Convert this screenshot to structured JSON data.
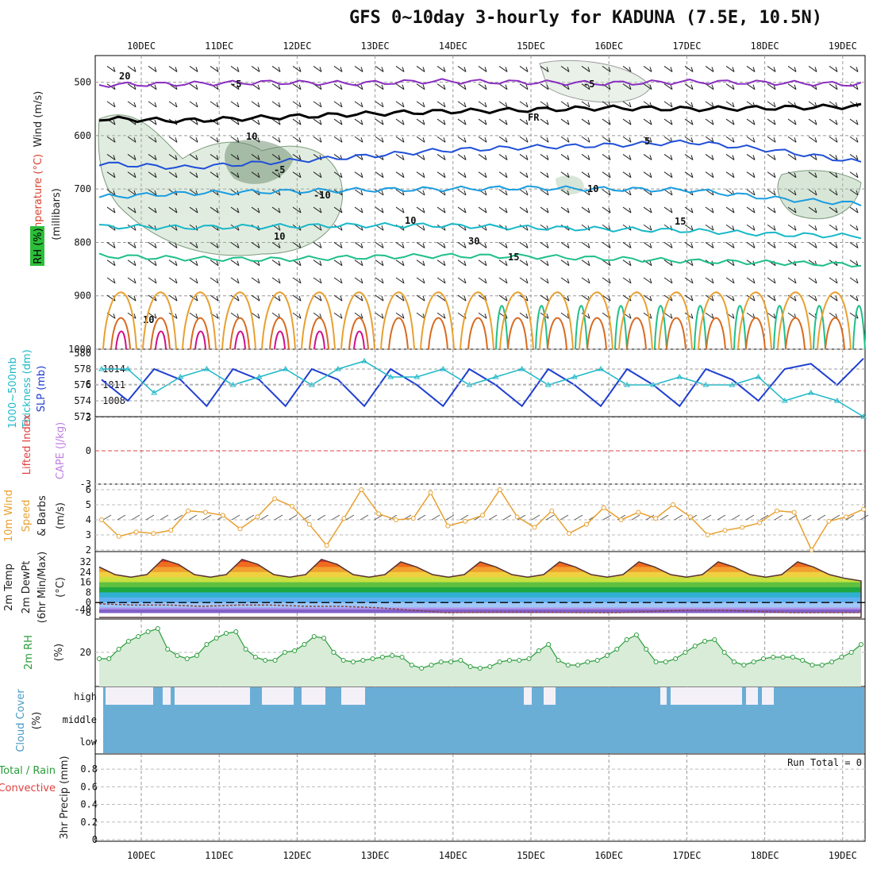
{
  "title": "GFS 0~10day 3-hourly for KADUNA (7.5E, 10.5N)",
  "dates": [
    "10DEC",
    "11DEC",
    "12DEC",
    "13DEC",
    "14DEC",
    "15DEC",
    "16DEC",
    "17DEC",
    "18DEC",
    "19DEC"
  ],
  "run_total": "Run Total = 0",
  "colors": {
    "purple": "#8a2fc0",
    "black": "#000000",
    "blue": "#1f4fd8",
    "lightblue": "#1a9de0",
    "teal": "#17b8c8",
    "green": "#1fbf8a",
    "orange": "#e8a030",
    "darkorange": "#d86a20",
    "magenta": "#d0108a",
    "slp": "#1f3fd0",
    "thick": "#20b8c8",
    "wind10": "#e8a030",
    "rh": "#2a9d3a",
    "cloud": "#6aaed6"
  },
  "panel_labels": {
    "upper": [
      "Wind (m/s)",
      "Temperature (°C)",
      "RH (%)",
      "(millibars)"
    ],
    "thickness": [
      "1000~500mb",
      "Thickness (dm)",
      "SLP (mb)"
    ],
    "stability": [
      "Lifted Index",
      "CAPE (J/kg)"
    ],
    "wind10": [
      "10m Wind",
      "Speed",
      "& Barbs",
      "(m/s)"
    ],
    "temp": [
      "2m Temp",
      "2m DewPt",
      "(6hr Min/Max)",
      "(°C)"
    ],
    "rh": [
      "2m RH",
      "(%)"
    ],
    "cloud": [
      "Cloud Cover",
      "(%)"
    ],
    "precip": [
      "Total / Rain",
      "Convective",
      "3hr Precip (mm)"
    ]
  },
  "contour_labels": [
    "-5",
    "-5",
    "FR",
    "-5",
    "5",
    "-10",
    "10",
    "10",
    "15",
    "15",
    "20",
    "10",
    "10",
    "30",
    "10"
  ],
  "cloud_levels": [
    "high",
    "middle",
    "low"
  ],
  "chart_data": [
    {
      "type": "line",
      "title": "Upper air cross-section",
      "ylabel": "(millibars)",
      "y_ticks": [
        "500",
        "600",
        "700",
        "800",
        "900",
        "1000"
      ],
      "x": [
        "10DEC",
        "11DEC",
        "12DEC",
        "13DEC",
        "14DEC",
        "15DEC",
        "16DEC",
        "17DEC",
        "18DEC",
        "19DEC"
      ],
      "series": [
        {
          "name": "-5",
          "values": [
            505,
            503,
            500,
            502,
            498,
            500,
            502,
            499,
            501,
            504
          ]
        },
        {
          "name": "FR",
          "values": [
            568,
            572,
            566,
            560,
            555,
            552,
            548,
            550,
            548,
            545
          ]
        },
        {
          "name": "5",
          "values": [
            652,
            660,
            650,
            640,
            628,
            622,
            618,
            612,
            628,
            650
          ]
        },
        {
          "name": "10",
          "values": [
            715,
            708,
            705,
            702,
            700,
            698,
            700,
            702,
            718,
            728
          ]
        },
        {
          "name": "15",
          "values": [
            770,
            772,
            770,
            768,
            768,
            772,
            775,
            778,
            785,
            788
          ]
        },
        {
          "name": "20",
          "values": [
            825,
            830,
            832,
            828,
            825,
            826,
            830,
            835,
            838,
            842
          ]
        }
      ]
    },
    {
      "type": "line",
      "y_ticks_left": [
        "572",
        "574",
        "576",
        "578",
        "580"
      ],
      "y_ticks_right": [
        "1008",
        "1011",
        "1014"
      ],
      "series": [
        {
          "name": "SLP (mb)",
          "values": [
            1012,
            1008,
            1014,
            1012,
            1007,
            1014,
            1012,
            1007,
            1014,
            1012,
            1007,
            1014,
            1011,
            1007,
            1014,
            1011,
            1007,
            1014,
            1011,
            1007,
            1014,
            1011,
            1007,
            1014,
            1012,
            1008,
            1014,
            1015,
            1011,
            1016
          ]
        },
        {
          "name": "Thickness (dm)",
          "values": [
            578,
            578,
            575,
            577,
            578,
            576,
            577,
            578,
            576,
            578,
            579,
            577,
            577,
            578,
            576,
            577,
            578,
            576,
            577,
            578,
            576,
            576,
            577,
            576,
            576,
            577,
            574,
            575,
            574,
            572
          ]
        }
      ]
    },
    {
      "type": "line",
      "y_ticks": [
        "-3",
        "0",
        "3",
        "6"
      ]
    },
    {
      "type": "line",
      "y_ticks": [
        "2",
        "3",
        "4",
        "5",
        "6"
      ],
      "series": [
        {
          "name": "10m Wind Speed",
          "values": [
            4.0,
            2.9,
            3.2,
            3.1,
            3.3,
            4.6,
            4.5,
            4.3,
            3.4,
            4.2,
            5.4,
            4.9,
            3.7,
            2.3,
            4.1,
            6.0,
            4.4,
            4.0,
            4.1,
            5.8,
            3.6,
            3.9,
            4.3,
            6.0,
            4.2,
            3.5,
            4.6,
            3.1,
            3.7,
            4.8,
            4.0,
            4.5,
            4.1,
            5.0,
            4.2,
            3.0,
            3.3,
            3.5,
            3.8,
            4.6,
            4.5,
            2.0,
            3.9,
            4.2,
            4.7
          ]
        }
      ]
    },
    {
      "type": "area",
      "y_ticks": [
        "-40",
        "-8",
        "0",
        "8",
        "16",
        "24",
        "32"
      ],
      "series": [
        {
          "name": "2m Temp",
          "values": [
            28,
            22,
            20,
            22,
            34,
            30,
            22,
            20,
            22,
            34,
            30,
            22,
            20,
            22,
            34,
            30,
            22,
            20,
            22,
            32,
            28,
            22,
            20,
            22,
            32,
            28,
            22,
            20,
            22,
            32,
            28,
            22,
            20,
            22,
            32,
            28,
            22,
            20,
            22,
            32,
            28,
            22,
            20,
            22,
            32,
            28,
            22,
            19,
            17
          ]
        },
        {
          "name": "2m DewPt",
          "values": [
            -1,
            -2,
            -2,
            -3,
            -2,
            -2,
            -3,
            -3,
            -4,
            -6,
            -8,
            -11,
            -12,
            -11,
            -9,
            -8,
            -7,
            -6,
            -6,
            -7,
            -8,
            -9,
            -10
          ]
        }
      ]
    },
    {
      "type": "area",
      "y_ticks": [
        "20"
      ],
      "series": [
        {
          "name": "2m RH",
          "values": [
            16,
            16,
            22,
            27,
            30,
            33,
            35,
            22,
            18,
            16,
            18,
            25,
            29,
            32,
            33,
            22,
            17,
            15,
            15,
            20,
            21,
            25,
            30,
            29,
            20,
            15,
            14,
            15,
            16,
            17,
            18,
            17,
            12,
            10,
            12,
            14,
            14,
            15,
            11,
            10,
            11,
            14,
            15,
            15,
            16,
            21,
            25,
            15,
            12,
            12,
            14,
            15,
            18,
            22,
            28,
            31,
            22,
            14,
            14,
            16,
            20,
            24,
            27,
            28,
            20,
            14,
            12,
            14,
            16,
            17,
            17,
            17,
            15,
            12,
            12,
            14,
            17,
            20,
            25
          ]
        }
      ]
    },
    {
      "type": "bar",
      "levels": [
        "high",
        "middle",
        "low"
      ]
    },
    {
      "type": "bar",
      "y_ticks": [
        "0",
        "0.2",
        "0.4",
        "0.6",
        "0.8"
      ],
      "values": []
    }
  ]
}
